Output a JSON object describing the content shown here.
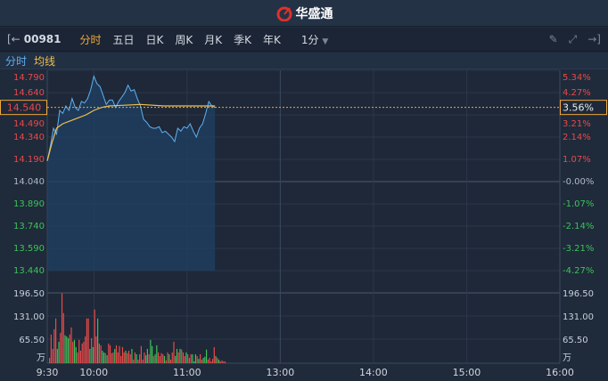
{
  "header": {
    "brand": "华盛通"
  },
  "toolbar": {
    "code": "00981",
    "tabs": [
      "分时",
      "五日",
      "日K",
      "周K",
      "月K",
      "季K",
      "年K"
    ],
    "active_tab": "分时",
    "interval": "1分"
  },
  "subtabs": {
    "price": "分时",
    "avg": "均线"
  },
  "colors": {
    "up": "#e84a4a",
    "down": "#3cc25a",
    "price_line": "#5fb0f0",
    "avg_line": "#f0c050",
    "accent": "#f0a83c"
  },
  "chart_data": {
    "type": "line",
    "prev_close": 14.04,
    "current_price": "14.540",
    "current_pct": "3.56%",
    "price_ticks": [
      "14.790",
      "14.640",
      "14.490",
      "14.340",
      "14.190",
      "14.040",
      "13.890",
      "13.740",
      "13.590",
      "13.440"
    ],
    "pct_ticks": [
      "5.34%",
      "4.27%",
      "3.21%",
      "2.14%",
      "1.07%",
      "-0.00%",
      "-1.07%",
      "-2.14%",
      "-3.21%",
      "-4.27%"
    ],
    "ylim": [
      13.44,
      14.79
    ],
    "volume_ticks": [
      "196.50",
      "131.00",
      "65.50"
    ],
    "volume_unit": "万",
    "time_ticks": [
      "9:30",
      "10:00",
      "11:00",
      "13:00",
      "14:00",
      "15:00",
      "16:00"
    ],
    "price_series": [
      [
        "9:30",
        14.18
      ],
      [
        "9:32",
        14.28
      ],
      [
        "9:34",
        14.4
      ],
      [
        "9:36",
        14.36
      ],
      [
        "9:38",
        14.52
      ],
      [
        "9:40",
        14.5
      ],
      [
        "9:42",
        14.55
      ],
      [
        "9:44",
        14.52
      ],
      [
        "9:46",
        14.6
      ],
      [
        "9:48",
        14.54
      ],
      [
        "9:50",
        14.52
      ],
      [
        "9:52",
        14.58
      ],
      [
        "9:54",
        14.57
      ],
      [
        "9:56",
        14.6
      ],
      [
        "9:58",
        14.66
      ],
      [
        "10:00",
        14.75
      ],
      [
        "10:02",
        14.7
      ],
      [
        "10:04",
        14.68
      ],
      [
        "10:06",
        14.62
      ],
      [
        "10:08",
        14.56
      ],
      [
        "10:10",
        14.59
      ],
      [
        "10:12",
        14.59
      ],
      [
        "10:14",
        14.54
      ],
      [
        "10:16",
        14.58
      ],
      [
        "10:18",
        14.61
      ],
      [
        "10:20",
        14.64
      ],
      [
        "10:22",
        14.69
      ],
      [
        "10:24",
        14.65
      ],
      [
        "10:26",
        14.66
      ],
      [
        "10:28",
        14.6
      ],
      [
        "10:30",
        14.55
      ],
      [
        "10:32",
        14.46
      ],
      [
        "10:34",
        14.44
      ],
      [
        "10:36",
        14.41
      ],
      [
        "10:38",
        14.4
      ],
      [
        "10:40",
        14.4
      ],
      [
        "10:42",
        14.41
      ],
      [
        "10:44",
        14.37
      ],
      [
        "10:46",
        14.38
      ],
      [
        "10:48",
        14.36
      ],
      [
        "10:50",
        14.34
      ],
      [
        "10:52",
        14.31
      ],
      [
        "10:54",
        14.4
      ],
      [
        "10:56",
        14.38
      ],
      [
        "10:58",
        14.41
      ],
      [
        "11:00",
        14.4
      ],
      [
        "11:02",
        14.43
      ],
      [
        "11:04",
        14.38
      ],
      [
        "11:06",
        14.34
      ],
      [
        "11:08",
        14.4
      ],
      [
        "11:10",
        14.43
      ],
      [
        "11:12",
        14.5
      ],
      [
        "11:14",
        14.58
      ],
      [
        "11:16",
        14.55
      ],
      [
        "11:18",
        14.54
      ]
    ],
    "avg_series": [
      [
        "9:30",
        14.18
      ],
      [
        "9:33",
        14.3
      ],
      [
        "9:36",
        14.4
      ],
      [
        "9:40",
        14.43
      ],
      [
        "9:45",
        14.45
      ],
      [
        "9:50",
        14.47
      ],
      [
        "9:55",
        14.49
      ],
      [
        "10:00",
        14.52
      ],
      [
        "10:05",
        14.54
      ],
      [
        "10:10",
        14.55
      ],
      [
        "10:30",
        14.56
      ],
      [
        "10:45",
        14.55
      ],
      [
        "11:00",
        14.55
      ],
      [
        "11:18",
        14.55
      ]
    ],
    "volume_series": [
      [
        15,
        "u"
      ],
      [
        80,
        "u"
      ],
      [
        40,
        "u"
      ],
      [
        95,
        "u"
      ],
      [
        125,
        "u"
      ],
      [
        40,
        "d"
      ],
      [
        60,
        "d"
      ],
      [
        85,
        "u"
      ],
      [
        195,
        "u"
      ],
      [
        140,
        "u"
      ],
      [
        78,
        "d"
      ],
      [
        75,
        "d"
      ],
      [
        70,
        "d"
      ],
      [
        80,
        "u"
      ],
      [
        100,
        "u"
      ],
      [
        60,
        "u"
      ],
      [
        65,
        "d"
      ],
      [
        45,
        "d"
      ],
      [
        30,
        "u"
      ],
      [
        65,
        "u"
      ],
      [
        35,
        "u"
      ],
      [
        55,
        "u"
      ],
      [
        60,
        "u"
      ],
      [
        75,
        "u"
      ],
      [
        125,
        "u"
      ],
      [
        125,
        "u"
      ],
      [
        40,
        "d"
      ],
      [
        70,
        "u"
      ],
      [
        45,
        "d"
      ],
      [
        150,
        "u"
      ],
      [
        75,
        "u"
      ],
      [
        125,
        "d"
      ],
      [
        55,
        "u"
      ],
      [
        50,
        "u"
      ],
      [
        35,
        "d"
      ],
      [
        30,
        "d"
      ],
      [
        28,
        "u"
      ],
      [
        22,
        "d"
      ],
      [
        55,
        "u"
      ],
      [
        50,
        "u"
      ],
      [
        28,
        "u"
      ],
      [
        30,
        "u"
      ],
      [
        40,
        "d"
      ],
      [
        50,
        "u"
      ],
      [
        30,
        "u"
      ],
      [
        48,
        "u"
      ],
      [
        20,
        "u"
      ],
      [
        45,
        "u"
      ],
      [
        30,
        "u"
      ],
      [
        35,
        "d"
      ],
      [
        28,
        "u"
      ],
      [
        35,
        "u"
      ],
      [
        25,
        "u"
      ],
      [
        40,
        "d"
      ],
      [
        10,
        "u"
      ],
      [
        30,
        "u"
      ],
      [
        25,
        "d"
      ],
      [
        10,
        "u"
      ],
      [
        25,
        "u"
      ],
      [
        48,
        "u"
      ],
      [
        10,
        "u"
      ],
      [
        30,
        "u"
      ],
      [
        22,
        "d"
      ],
      [
        40,
        "d"
      ],
      [
        25,
        "u"
      ],
      [
        65,
        "d"
      ],
      [
        48,
        "d"
      ],
      [
        20,
        "u"
      ],
      [
        25,
        "d"
      ],
      [
        50,
        "d"
      ],
      [
        30,
        "u"
      ],
      [
        20,
        "u"
      ],
      [
        28,
        "u"
      ],
      [
        25,
        "u"
      ],
      [
        20,
        "d"
      ],
      [
        8,
        "u"
      ],
      [
        30,
        "u"
      ],
      [
        25,
        "d"
      ],
      [
        10,
        "u"
      ],
      [
        30,
        "u"
      ],
      [
        60,
        "u"
      ],
      [
        20,
        "d"
      ],
      [
        40,
        "d"
      ],
      [
        30,
        "u"
      ],
      [
        40,
        "d"
      ],
      [
        38,
        "u"
      ],
      [
        30,
        "u"
      ],
      [
        20,
        "u"
      ],
      [
        30,
        "d"
      ],
      [
        25,
        "u"
      ],
      [
        15,
        "u"
      ],
      [
        25,
        "u"
      ],
      [
        25,
        "d"
      ],
      [
        5,
        "d"
      ],
      [
        25,
        "d"
      ],
      [
        20,
        "u"
      ],
      [
        12,
        "d"
      ],
      [
        25,
        "u"
      ],
      [
        10,
        "u"
      ],
      [
        15,
        "d"
      ],
      [
        18,
        "d"
      ],
      [
        38,
        "d"
      ],
      [
        10,
        "u"
      ],
      [
        15,
        "u"
      ],
      [
        5,
        "u"
      ],
      [
        12,
        "u"
      ],
      [
        45,
        "u"
      ],
      [
        20,
        "d"
      ],
      [
        15,
        "u"
      ],
      [
        10,
        "d"
      ],
      [
        5,
        "u"
      ],
      [
        8,
        "u"
      ],
      [
        5,
        "u"
      ],
      [
        5,
        "u"
      ]
    ]
  }
}
